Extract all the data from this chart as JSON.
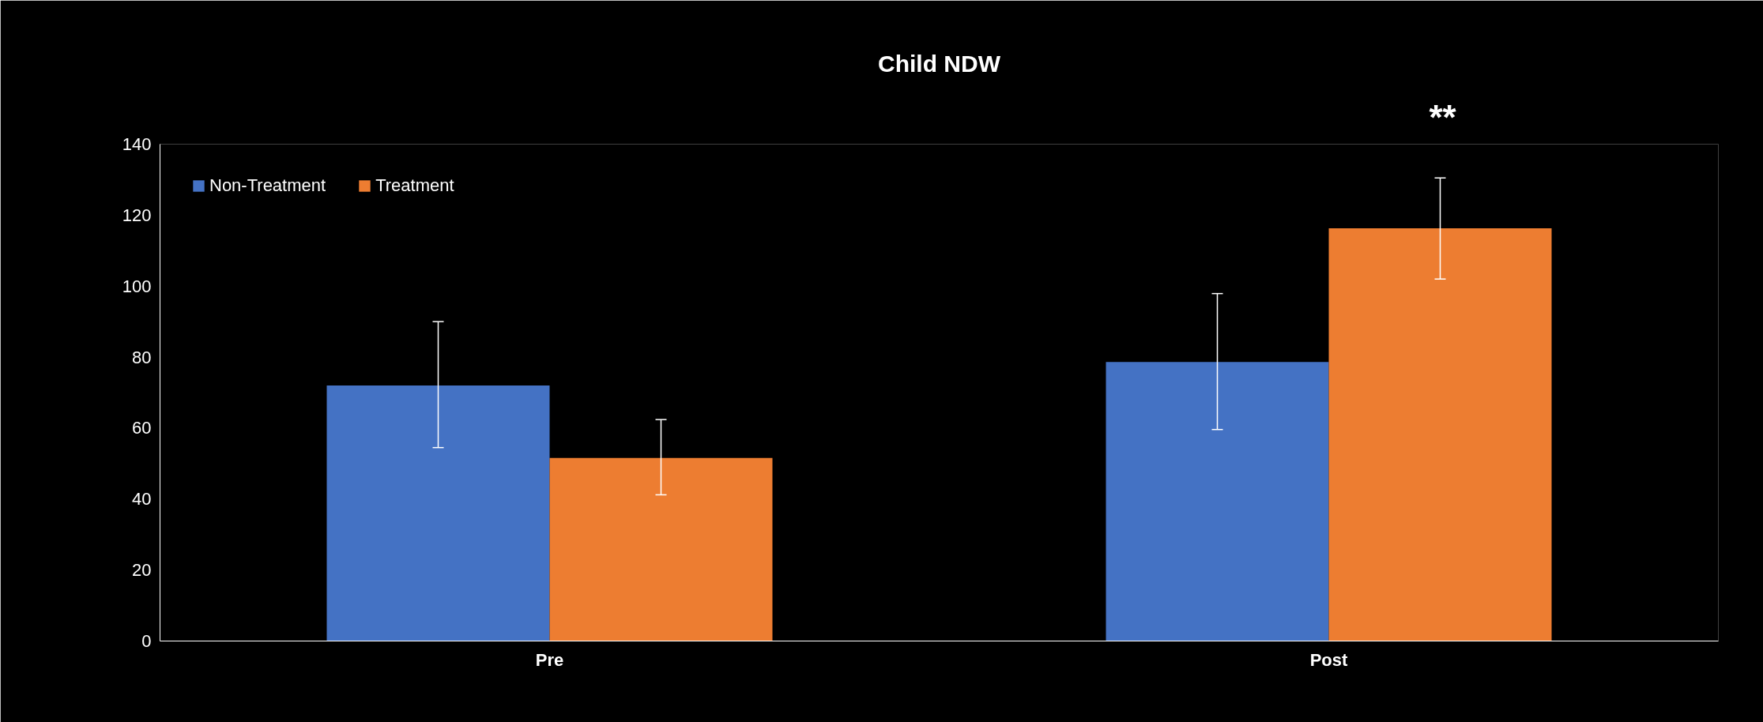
{
  "chart_data": {
    "type": "bar",
    "title": "Child NDW",
    "categories": [
      "Pre",
      "Post"
    ],
    "series": [
      {
        "name": "Non-Treatment",
        "color": "#4472c4",
        "values": [
          72,
          78.6
        ],
        "errors": [
          [
            54.5,
            90
          ],
          [
            59.6,
            97.9
          ]
        ]
      },
      {
        "name": "Treatment",
        "color": "#ed7d31",
        "values": [
          51.6,
          116.3
        ],
        "errors": [
          [
            41.2,
            62.4
          ],
          [
            102,
            130.5
          ]
        ]
      }
    ],
    "ylim": [
      0,
      140
    ],
    "yticks": [
      0,
      20,
      40,
      60,
      80,
      100,
      120,
      140
    ],
    "grid": false,
    "legend": "top left",
    "annotations": [
      "**"
    ]
  }
}
